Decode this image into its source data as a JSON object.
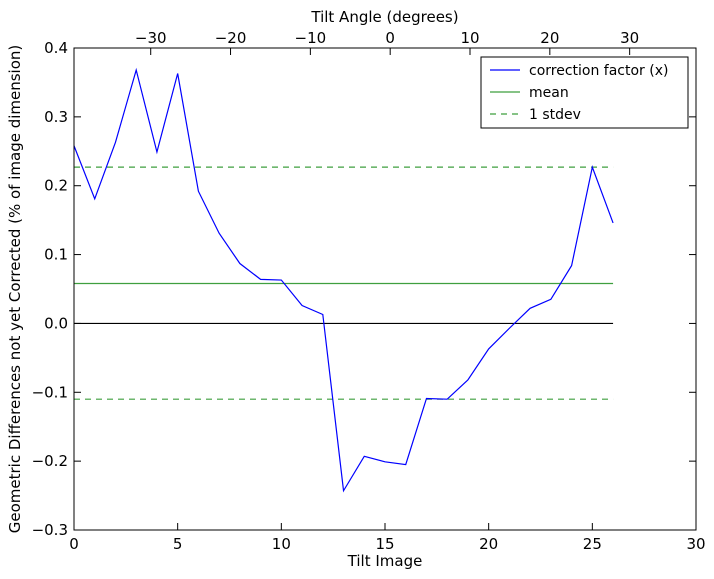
{
  "chart_data": {
    "type": "line",
    "xlabel": "Tilt Image",
    "x2label": "Tilt Angle (degrees)",
    "ylabel": "Geometric Differences not yet Corrected (% of image dimension)",
    "xlim": [
      0,
      30
    ],
    "ylim": [
      -0.3,
      0.4
    ],
    "x_ticks": [
      0,
      5,
      10,
      15,
      20,
      25,
      30
    ],
    "x_tick_labels": [
      "0",
      "5",
      "10",
      "15",
      "20",
      "25",
      "30"
    ],
    "y_ticks": [
      -0.3,
      -0.2,
      -0.1,
      0.0,
      0.1,
      0.2,
      0.3,
      0.4
    ],
    "y_tick_labels": [
      "−0.3",
      "−0.2",
      "−0.1",
      "0.0",
      "0.1",
      "0.2",
      "0.3",
      "0.4"
    ],
    "x2_tick_positions": [
      3.7,
      7.55,
      11.4,
      15.25,
      19.1,
      22.95,
      26.8
    ],
    "x2_tick_labels": [
      "−30",
      "−20",
      "−10",
      "0",
      "10",
      "20",
      "30"
    ],
    "legend_placement": "top-right",
    "grid": false,
    "series": [
      {
        "name": "correction factor (x)",
        "color": "#0000ff",
        "style": "solid",
        "x": [
          0,
          1,
          2,
          3,
          4,
          5,
          6,
          7,
          8,
          9,
          10,
          11,
          12,
          13,
          14,
          15,
          16,
          17,
          18,
          19,
          20,
          21,
          22,
          23,
          24,
          25,
          26
        ],
        "y": [
          0.258,
          0.181,
          0.263,
          0.368,
          0.249,
          0.363,
          0.192,
          0.131,
          0.087,
          0.064,
          0.063,
          0.026,
          0.013,
          -0.243,
          -0.193,
          -0.201,
          -0.205,
          -0.109,
          -0.11,
          -0.082,
          -0.037,
          -0.007,
          0.022,
          0.035,
          0.084,
          0.227,
          0.146
        ]
      },
      {
        "name": "mean",
        "color": "#3f9f3f",
        "style": "solid",
        "x": [
          0,
          26
        ],
        "y": [
          0.058,
          0.058
        ]
      },
      {
        "name": "1 stdev",
        "color": "#3f9f3f",
        "style": "dashed",
        "x": [
          0,
          26
        ],
        "y": [
          0.227,
          0.227
        ]
      },
      {
        "name": "",
        "color": "#3f9f3f",
        "style": "dashed",
        "x": [
          0,
          26
        ],
        "y": [
          -0.11,
          -0.11
        ]
      },
      {
        "name": "",
        "color": "#000000",
        "style": "solid",
        "x": [
          0,
          26
        ],
        "y": [
          0.0,
          0.0
        ]
      }
    ]
  }
}
